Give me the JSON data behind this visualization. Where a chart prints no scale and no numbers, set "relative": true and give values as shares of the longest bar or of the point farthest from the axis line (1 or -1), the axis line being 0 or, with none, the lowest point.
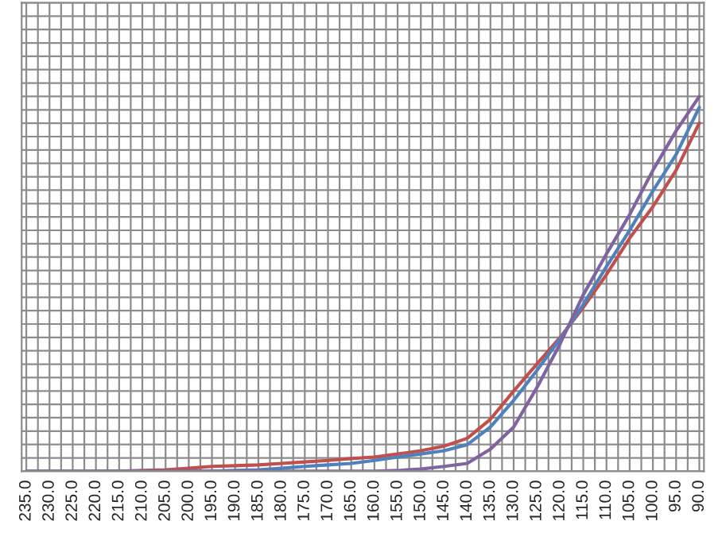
{
  "chart_data": {
    "type": "line",
    "relative": true,
    "grid": true,
    "marker": "none",
    "line_style": "solid",
    "x": [
      235,
      230,
      225,
      220,
      215,
      210,
      205,
      200,
      195,
      190,
      185,
      180,
      175,
      170,
      165,
      160,
      155,
      150,
      145,
      140,
      135,
      130,
      125,
      120,
      115,
      110,
      105,
      100,
      95,
      90
    ],
    "xlim": [
      236,
      89
    ],
    "xticks": [
      {
        "value": 235,
        "label": "235.0"
      },
      {
        "value": 232.5,
        "label": null
      },
      {
        "value": 230,
        "label": "230.0"
      },
      {
        "value": 227.5,
        "label": null
      },
      {
        "value": 225,
        "label": "225.0"
      },
      {
        "value": 222.5,
        "label": null
      },
      {
        "value": 220,
        "label": "220.0"
      },
      {
        "value": 217.5,
        "label": null
      },
      {
        "value": 215,
        "label": "215.0"
      },
      {
        "value": 212.5,
        "label": null
      },
      {
        "value": 210,
        "label": "210.0"
      },
      {
        "value": 207.5,
        "label": null
      },
      {
        "value": 205,
        "label": "205.0"
      },
      {
        "value": 202.5,
        "label": null
      },
      {
        "value": 200,
        "label": "200.0"
      },
      {
        "value": 197.5,
        "label": null
      },
      {
        "value": 195,
        "label": "195.0"
      },
      {
        "value": 192.5,
        "label": null
      },
      {
        "value": 190,
        "label": "190.0"
      },
      {
        "value": 187.5,
        "label": null
      },
      {
        "value": 185,
        "label": "185.0"
      },
      {
        "value": 182.5,
        "label": null
      },
      {
        "value": 180,
        "label": "180.0"
      },
      {
        "value": 177.5,
        "label": null
      },
      {
        "value": 175,
        "label": "175.0"
      },
      {
        "value": 172.5,
        "label": null
      },
      {
        "value": 170,
        "label": "170.0"
      },
      {
        "value": 167.5,
        "label": null
      },
      {
        "value": 165,
        "label": "165.0"
      },
      {
        "value": 162.5,
        "label": null
      },
      {
        "value": 160,
        "label": "160.0"
      },
      {
        "value": 157.5,
        "label": null
      },
      {
        "value": 155,
        "label": "155.0"
      },
      {
        "value": 152.5,
        "label": null
      },
      {
        "value": 150,
        "label": "150.0"
      },
      {
        "value": 147.5,
        "label": null
      },
      {
        "value": 145,
        "label": "145.0"
      },
      {
        "value": 142.5,
        "label": null
      },
      {
        "value": 140,
        "label": "140.0"
      },
      {
        "value": 137.5,
        "label": null
      },
      {
        "value": 135,
        "label": "135.0"
      },
      {
        "value": 132.5,
        "label": null
      },
      {
        "value": 130,
        "label": "130.0"
      },
      {
        "value": 127.5,
        "label": null
      },
      {
        "value": 125,
        "label": "125.0"
      },
      {
        "value": 122.5,
        "label": null
      },
      {
        "value": 120,
        "label": "120.0"
      },
      {
        "value": 117.5,
        "label": null
      },
      {
        "value": 115,
        "label": "115.0"
      },
      {
        "value": 112.5,
        "label": null
      },
      {
        "value": 110,
        "label": "110.0"
      },
      {
        "value": 107.5,
        "label": null
      },
      {
        "value": 105,
        "label": "105.0"
      },
      {
        "value": 102.5,
        "label": null
      },
      {
        "value": 100,
        "label": "100.0"
      },
      {
        "value": 97.5,
        "label": null
      },
      {
        "value": 95,
        "label": "95.0"
      },
      {
        "value": 92.5,
        "label": null
      },
      {
        "value": 90,
        "label": "90.0"
      }
    ],
    "series": [
      {
        "color": "#c0504d",
        "values": [
          null,
          null,
          null,
          0,
          0,
          0.002,
          0.004,
          0.008,
          0.013,
          0.015,
          0.017,
          0.021,
          0.025,
          0.029,
          0.034,
          0.038,
          0.046,
          0.055,
          0.067,
          0.088,
          0.139,
          0.214,
          0.286,
          0.357,
          0.437,
          0.525,
          0.622,
          0.706,
          0.803,
          0.929
        ]
      },
      {
        "color": "#4f81bd",
        "values": [
          0,
          0,
          0,
          0,
          0,
          0,
          0,
          0,
          0,
          0.002,
          0.004,
          0.008,
          0.013,
          0.017,
          0.021,
          0.029,
          0.038,
          0.046,
          0.055,
          0.071,
          0.118,
          0.189,
          0.269,
          0.353,
          0.445,
          0.546,
          0.643,
          0.748,
          0.845,
          0.971
        ]
      },
      {
        "color": "#8064a2",
        "values": [
          0,
          0,
          0,
          0,
          0,
          0,
          0,
          0,
          0,
          0,
          0,
          0,
          0,
          0,
          0,
          0,
          0.002,
          0.006,
          0.013,
          0.021,
          0.059,
          0.118,
          0.223,
          0.34,
          0.471,
          0.58,
          0.685,
          0.803,
          0.908,
          1.0
        ]
      }
    ]
  }
}
